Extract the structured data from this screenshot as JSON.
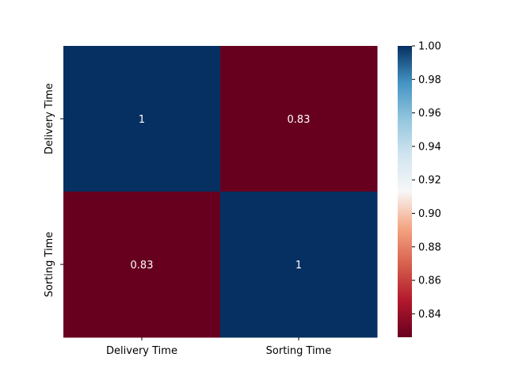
{
  "chart_data": {
    "type": "heatmap",
    "rows": [
      "Delivery Time",
      "Sorting Time"
    ],
    "columns": [
      "Delivery Time",
      "Sorting Time"
    ],
    "values": [
      [
        1,
        0.83
      ],
      [
        0.83,
        1
      ]
    ],
    "annotations": [
      [
        "1",
        "0.83"
      ],
      [
        "0.83",
        "1"
      ]
    ],
    "colormap": "RdBu",
    "colorbar": {
      "range": [
        0.826,
        1.0
      ],
      "ticks": [
        0.84,
        0.86,
        0.88,
        0.9,
        0.92,
        0.94,
        0.96,
        0.98,
        1.0
      ],
      "tick_labels": [
        "0.84",
        "0.86",
        "0.88",
        "0.90",
        "0.92",
        "0.94",
        "0.96",
        "0.98",
        "1.00"
      ]
    },
    "colors": {
      "high": "#053061",
      "low": "#67001f",
      "annotation_text": "#ffffff"
    }
  }
}
